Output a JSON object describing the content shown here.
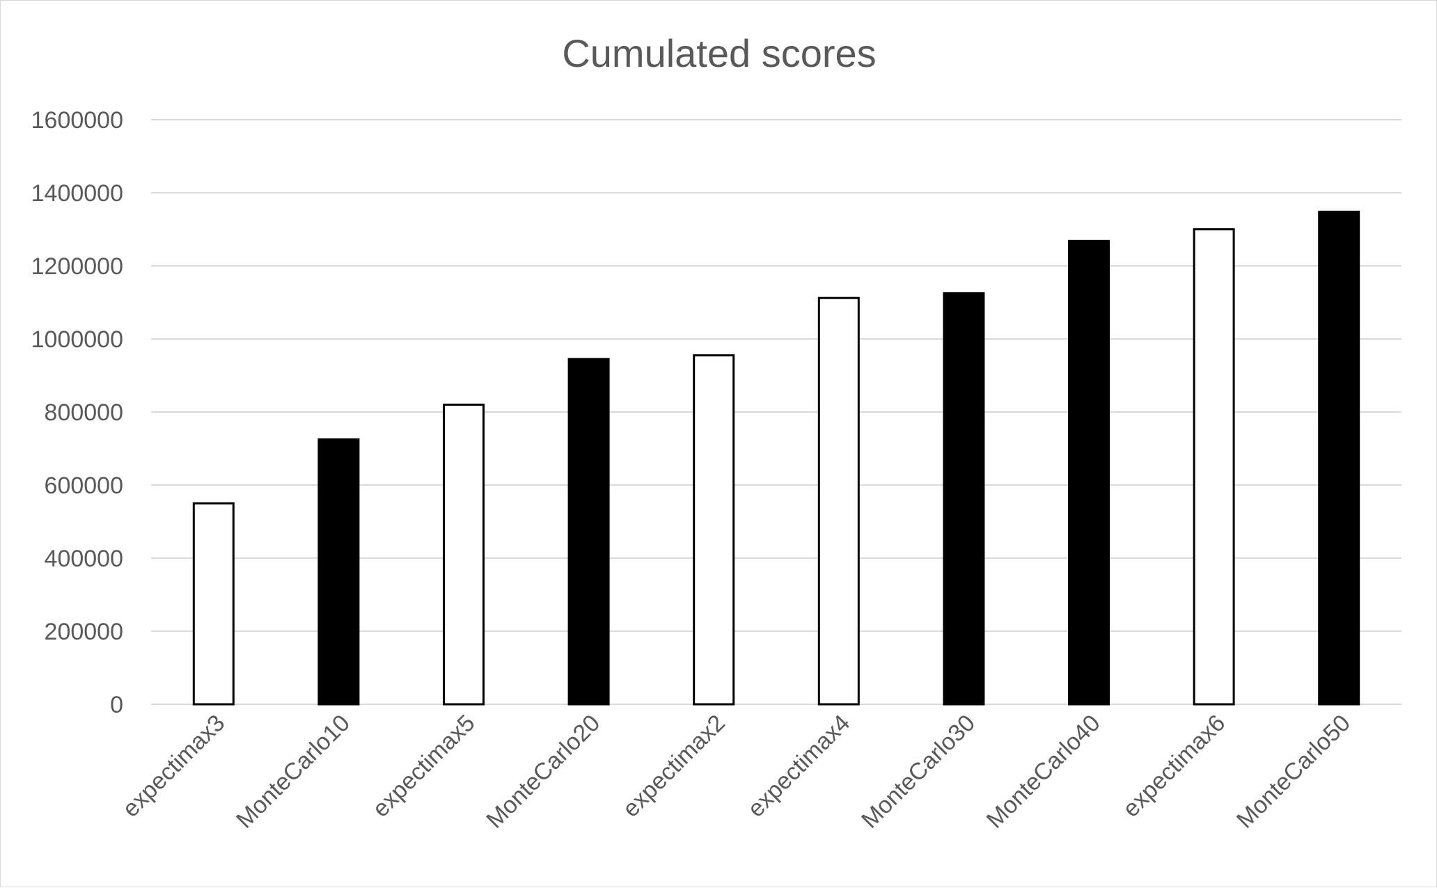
{
  "chart_data": {
    "type": "bar",
    "title": "Cumulated scores",
    "xlabel": "",
    "ylabel": "",
    "ylim": [
      0,
      1600000
    ],
    "yticks": [
      0,
      200000,
      400000,
      600000,
      800000,
      1000000,
      1200000,
      1400000,
      1600000
    ],
    "yticks_text": [
      "0",
      "200000",
      "400000",
      "600000",
      "800000",
      "1000000",
      "1200000",
      "1400000",
      "1600000"
    ],
    "grid": true,
    "legend": "none",
    "categories": [
      "expectimax3",
      "MonteCarlo10",
      "expectimax5",
      "MonteCarlo20",
      "expectimax2",
      "expectimax4",
      "MonteCarlo30",
      "MonteCarlo40",
      "expectimax6",
      "MonteCarlo50"
    ],
    "values": [
      550000,
      725000,
      820000,
      945000,
      955000,
      1112000,
      1125000,
      1268000,
      1300000,
      1348000
    ],
    "bar_styles": [
      "hollow",
      "filled",
      "hollow",
      "filled",
      "hollow",
      "hollow",
      "filled",
      "filled",
      "hollow",
      "filled"
    ],
    "colors": {
      "filled": "#000000",
      "hollow": "#ffffff",
      "outline": "#000000",
      "grid": "#d9d9d9",
      "text": "#595959"
    }
  }
}
